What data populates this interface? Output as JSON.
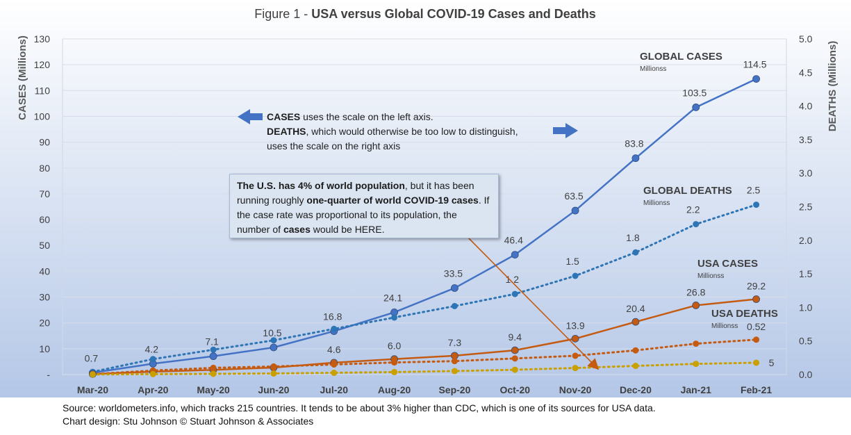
{
  "title_prefix": "Figure 1 - ",
  "title_bold": "USA versus Global COVID-19 Cases and Deaths",
  "note": {
    "line1_bold": "CASES",
    "line1_rest": " uses the scale on the left axis.",
    "line2_bold": "DEATHS",
    "line2_rest": ", which would otherwise be too low to distinguish,",
    "line3": "uses the scale on the right axis"
  },
  "callout": {
    "p1_bold": "The U.S. has 4% of world population",
    "p2": ", but it has been running roughly ",
    "p3_bold": "one-quarter of world COVID-19 cases",
    "p4": ".  If the case rate was proportional to its population, the number of ",
    "p5_bold": "cases",
    "p6": " would be HERE."
  },
  "footer": {
    "line1": "Source: worldometers.info, which tracks 215 countries. It tends to be about 3% higher than CDC, which is one of its sources for USA data.",
    "line2": "Chart design: Stu Johnson  © Stuart Johnson & Associates"
  },
  "colors": {
    "global": "#4472c4",
    "usa_cases": "#c55a11",
    "usa_deaths": "#c9a000",
    "plot_top": "#ffffff",
    "plot_bottom": "#b4c7e7",
    "text": "#404040"
  },
  "chart_data": {
    "type": "line",
    "categories": [
      "Mar-20",
      "Apr-20",
      "May-20",
      "Jun-20",
      "Jul-20",
      "Aug-20",
      "Sep-20",
      "Oct-20",
      "Nov-20",
      "Dec-20",
      "Jan-21",
      "Feb-21"
    ],
    "ylabel": "CASES (Millions)",
    "y2label": "DEATHS (Millions)",
    "ylim": [
      0,
      130
    ],
    "y2lim": [
      0,
      5.0
    ],
    "yticks": [
      "-",
      "10",
      "20",
      "30",
      "40",
      "50",
      "60",
      "70",
      "80",
      "90",
      "100",
      "110",
      "120",
      "130"
    ],
    "y2ticks": [
      "0.0",
      "0.5",
      "1.0",
      "1.5",
      "2.0",
      "2.5",
      "3.0",
      "3.5",
      "4.0",
      "4.5",
      "5.0"
    ],
    "series": [
      {
        "name": "GLOBAL CASES",
        "sublabel": "Millionss",
        "axis": "left",
        "style": "solid",
        "color": "#4472c4",
        "values": [
          0.7,
          4.2,
          7.1,
          10.5,
          16.8,
          24.1,
          33.5,
          46.4,
          63.5,
          83.8,
          103.5,
          114.5
        ],
        "labels": [
          "0.7",
          "4.2",
          "7.1",
          "10.5",
          "16.8",
          "24.1",
          "33.5",
          "46.4",
          "63.5",
          "83.8",
          "103.5",
          "114.5"
        ]
      },
      {
        "name": "GLOBAL DEATHS",
        "sublabel": "Millionss",
        "axis": "right",
        "style": "dotted",
        "color": "#2e75b6",
        "values": [
          0.04,
          0.23,
          0.37,
          0.51,
          0.68,
          0.85,
          1.02,
          1.2,
          1.47,
          1.82,
          2.24,
          2.53
        ],
        "labels": [
          "",
          "",
          "",
          "",
          "",
          "",
          "",
          "1.2",
          "1.5",
          "1.8",
          "2.2",
          "2.5"
        ]
      },
      {
        "name": "USA CASES",
        "sublabel": "Millionss",
        "axis": "left",
        "style": "solid",
        "color": "#c55a11",
        "values": [
          0.2,
          1.1,
          1.8,
          2.7,
          4.6,
          6.0,
          7.3,
          9.4,
          13.9,
          20.4,
          26.8,
          29.2
        ],
        "labels": [
          "",
          "",
          "",
          "",
          "4.6",
          "6.0",
          "7.3",
          "9.4",
          "13.9",
          "20.4",
          "26.8",
          "29.2"
        ]
      },
      {
        "name": "USA DEATHS",
        "sublabel": "Millionss",
        "axis": "right",
        "style": "dotted",
        "color": "#c55a11",
        "values": [
          0.005,
          0.06,
          0.1,
          0.12,
          0.15,
          0.18,
          0.2,
          0.24,
          0.28,
          0.36,
          0.46,
          0.52
        ],
        "labels": [
          "",
          "",
          "",
          "",
          "",
          "",
          "",
          "",
          "",
          "",
          "",
          "0.52"
        ]
      },
      {
        "name": "",
        "axis": "left",
        "style": "dotted",
        "color": "#c9a000",
        "values": [
          0.03,
          0.17,
          0.28,
          0.42,
          0.67,
          0.96,
          1.34,
          1.86,
          2.54,
          3.35,
          4.14,
          4.58
        ],
        "labels": [
          "",
          "",
          "",
          "",
          "",
          "",
          "",
          "",
          "",
          "",
          "",
          "5"
        ]
      }
    ]
  }
}
